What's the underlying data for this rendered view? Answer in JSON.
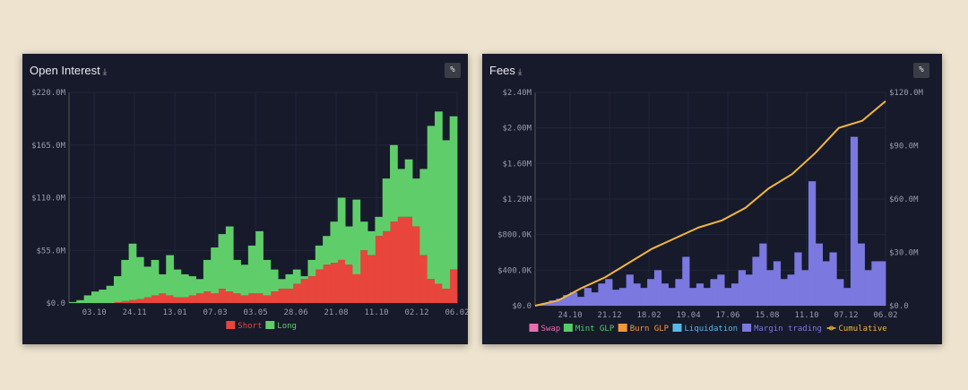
{
  "chart_data": [
    {
      "type": "bar",
      "stacked": true,
      "title": "Open Interest",
      "ylim": [
        0,
        220
      ],
      "y_unit": "M",
      "yticks": [
        "$0.0",
        "$55.0M",
        "$110.0M",
        "$165.0M",
        "$220.0M"
      ],
      "xticks": [
        "03.10",
        "24.11",
        "13.01",
        "07.03",
        "03.05",
        "28.06",
        "21.08",
        "11.10",
        "02.12",
        "06.02"
      ],
      "series": [
        {
          "name": "Short",
          "color": "#e8453c",
          "values": [
            0,
            0,
            0,
            0,
            0,
            0,
            1,
            2,
            3,
            4,
            6,
            8,
            10,
            8,
            6,
            6,
            8,
            10,
            12,
            10,
            15,
            12,
            10,
            8,
            10,
            10,
            8,
            12,
            15,
            15,
            20,
            25,
            28,
            35,
            40,
            42,
            45,
            40,
            30,
            55,
            50,
            70,
            75,
            85,
            90,
            90,
            80,
            50,
            25,
            20,
            15,
            35
          ]
        },
        {
          "name": "Long",
          "color": "#5fce6a",
          "values": [
            1,
            3,
            8,
            12,
            14,
            18,
            27,
            43,
            59,
            44,
            32,
            37,
            20,
            42,
            29,
            24,
            20,
            15,
            33,
            48,
            57,
            68,
            35,
            32,
            50,
            65,
            37,
            23,
            10,
            15,
            15,
            3,
            17,
            25,
            30,
            43,
            65,
            40,
            78,
            30,
            25,
            20,
            55,
            80,
            50,
            60,
            50,
            90,
            160,
            180,
            155,
            160
          ]
        }
      ],
      "legend_position": "bottom",
      "grid": true
    },
    {
      "type": "bar",
      "title": "Fees",
      "ylim": [
        0,
        2400
      ],
      "y_unit": "K",
      "y2lim": [
        0,
        120
      ],
      "y2_unit": "M",
      "yticks": [
        "$0.0",
        "$400.0K",
        "$800.0K",
        "$1.20M",
        "$1.60M",
        "$2.00M",
        "$2.40M"
      ],
      "y2ticks": [
        "$0.0",
        "$30.0M",
        "$60.0M",
        "$90.0M",
        "$120.0M"
      ],
      "xticks": [
        "24.10",
        "21.12",
        "18.02",
        "19.04",
        "17.06",
        "15.08",
        "11.10",
        "07.12",
        "06.02"
      ],
      "series": [
        {
          "name": "Swap",
          "color": "#e66fb0",
          "values": []
        },
        {
          "name": "Mint GLP",
          "color": "#4fcf66",
          "values": []
        },
        {
          "name": "Burn GLP",
          "color": "#f09a3a",
          "values": []
        },
        {
          "name": "Liquidation",
          "color": "#5ab8e8",
          "values": []
        },
        {
          "name": "Margin trading",
          "color": "#7b78e0",
          "values": [
            10,
            30,
            60,
            80,
            120,
            150,
            100,
            200,
            150,
            250,
            300,
            180,
            200,
            350,
            250,
            200,
            300,
            400,
            250,
            200,
            300,
            550,
            200,
            250,
            200,
            300,
            350,
            200,
            250,
            400,
            350,
            550,
            700,
            400,
            500,
            300,
            350,
            600,
            400,
            1400,
            700,
            500,
            600,
            300,
            200,
            1900,
            700,
            400,
            500,
            500
          ]
        },
        {
          "name": "Cumulative",
          "color": "#f2b63c",
          "axis": "right",
          "values": [
            0,
            3,
            10,
            16,
            24,
            32,
            38,
            44,
            48,
            55,
            66,
            74,
            86,
            100,
            104,
            115
          ]
        }
      ],
      "legend_position": "bottom",
      "grid": true
    }
  ],
  "labels": {
    "download": "⤓",
    "percent": "%"
  }
}
